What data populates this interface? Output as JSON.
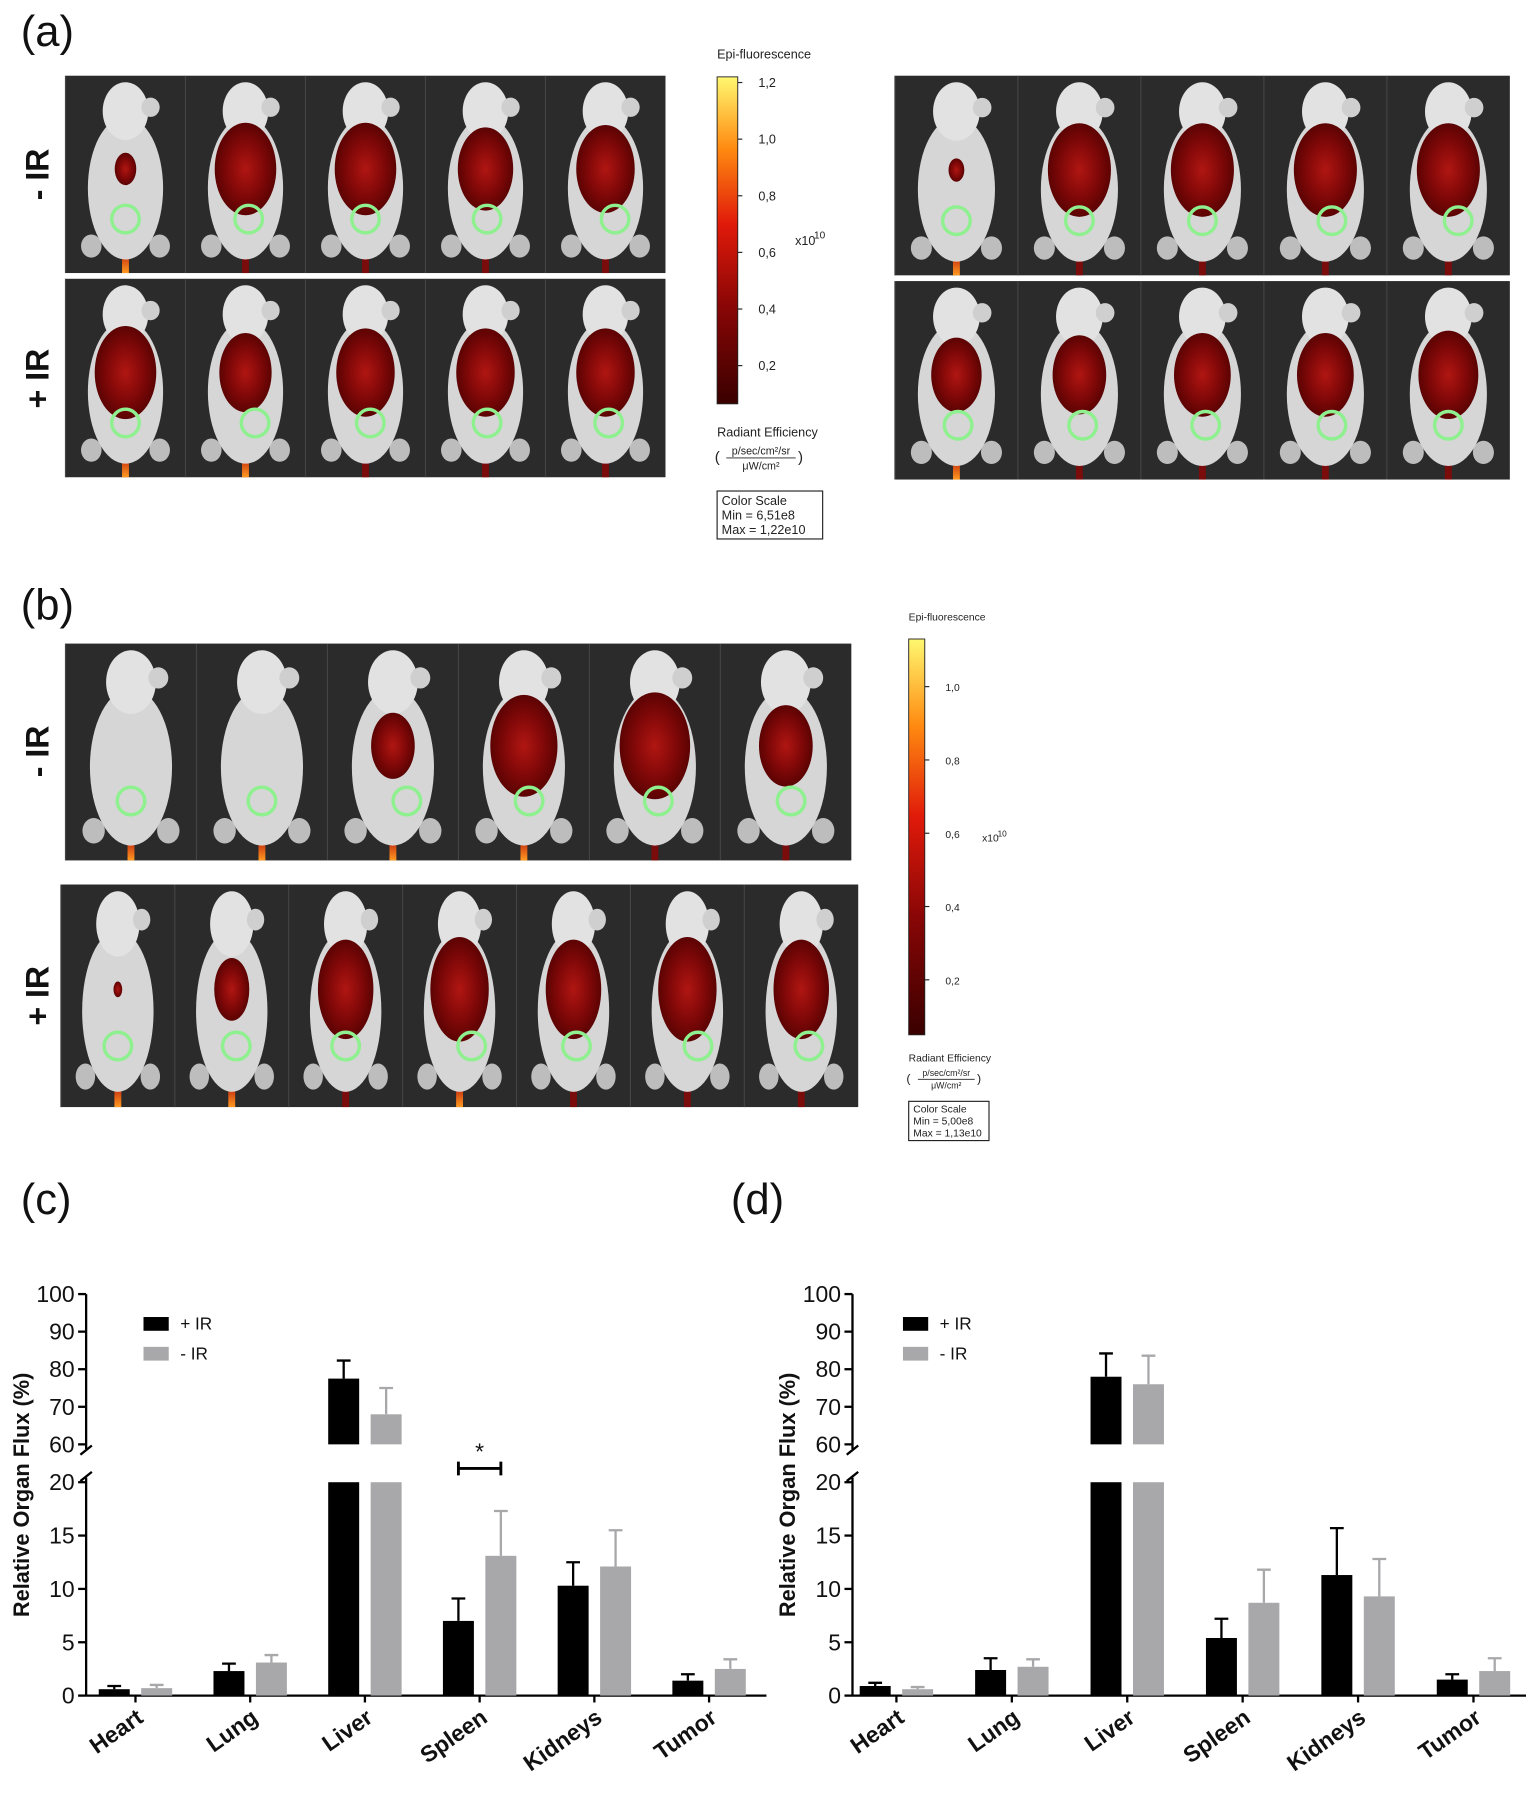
{
  "panel_labels": [
    "(a)",
    "(b)",
    "(c)",
    "(d)"
  ],
  "panel_a": {
    "row_labels": [
      "- IR",
      "+ IR"
    ],
    "colorbar": {
      "title": "Epi-fluorescence",
      "clim": [
        0.0651,
        1.22
      ],
      "ticks": [
        {
          "value": 1.2,
          "label": "1,2"
        },
        {
          "value": 1.0,
          "label": "1,0"
        },
        {
          "value": 0.8,
          "label": "0,8"
        },
        {
          "value": 0.6,
          "label": "0,6"
        },
        {
          "value": 0.4,
          "label": "0,4"
        },
        {
          "value": 0.2,
          "label": "0,2"
        }
      ],
      "multiplier": "x10",
      "exponent": "10",
      "unit_title": "Radiant Efficiency",
      "paren_open": "(",
      "unit_numerator": "p/sec/cm²/sr",
      "unit_denominator": "μW/cm²",
      "paren_close": ")",
      "scale_box": [
        "Color Scale",
        "Min = 6,51e8",
        "Max = 1,22e10"
      ]
    }
  },
  "panel_b": {
    "row_labels": [
      "- IR",
      "+ IR"
    ],
    "colorbar": {
      "title": "Epi-fluorescence",
      "clim": [
        0.05,
        1.13
      ],
      "ticks": [
        {
          "value": 1.0,
          "label": "1,0"
        },
        {
          "value": 0.8,
          "label": "0,8"
        },
        {
          "value": 0.6,
          "label": "0,6"
        },
        {
          "value": 0.4,
          "label": "0,4"
        },
        {
          "value": 0.2,
          "label": "0,2"
        }
      ],
      "multiplier": "x10",
      "exponent": "10",
      "unit_title": "Radiant Efficiency",
      "paren_open": "(",
      "unit_numerator": "p/sec/cm²/sr",
      "unit_denominator": "μW/cm²",
      "paren_close": ")",
      "scale_box": [
        "Color Scale",
        "Min = 5,00e8",
        "Max = 1,13e10"
      ]
    }
  },
  "chart_data": [
    {
      "type": "bar",
      "y_label": "Relative Organ Flux (%)",
      "categories": [
        "Heart",
        "Lung",
        "Liver",
        "Spleen",
        "Kidneys",
        "Tumor"
      ],
      "series": [
        {
          "name": "+ IR",
          "color": "#000000",
          "values": [
            0.6,
            2.3,
            77.5,
            7.0,
            10.3,
            1.4
          ],
          "errors": [
            0.3,
            0.7,
            4.8,
            2.1,
            2.2,
            0.6
          ]
        },
        {
          "name": "- IR",
          "color": "#a8a8ab",
          "values": [
            0.7,
            3.1,
            68,
            13.1,
            12.1,
            2.5
          ],
          "errors": [
            0.3,
            0.7,
            7,
            4.2,
            3.4,
            0.9
          ]
        }
      ],
      "ylim": [
        0,
        100
      ],
      "axis_break": [
        20,
        60
      ],
      "yticks": [
        0,
        5,
        10,
        15,
        20,
        60,
        70,
        80,
        90,
        100
      ],
      "annotation": {
        "text": "*",
        "category": "Spleen"
      }
    },
    {
      "type": "bar",
      "y_label": "Relative Organ Flux (%)",
      "categories": [
        "Heart",
        "Lung",
        "Liver",
        "Spleen",
        "Kidneys",
        "Tumor"
      ],
      "series": [
        {
          "name": "+ IR",
          "color": "#000000",
          "values": [
            0.9,
            2.4,
            78,
            5.4,
            11.3,
            1.5
          ],
          "errors": [
            0.3,
            1.1,
            6.2,
            1.8,
            4.4,
            0.5
          ]
        },
        {
          "name": "- IR",
          "color": "#a8a8ab",
          "values": [
            0.6,
            2.7,
            76,
            8.7,
            9.3,
            2.3
          ],
          "errors": [
            0.2,
            0.7,
            7.6,
            3.1,
            3.5,
            1.2
          ]
        }
      ],
      "ylim": [
        0,
        100
      ],
      "axis_break": [
        20,
        60
      ],
      "yticks": [
        0,
        5,
        10,
        15,
        20,
        60,
        70,
        80,
        90,
        100
      ]
    }
  ]
}
